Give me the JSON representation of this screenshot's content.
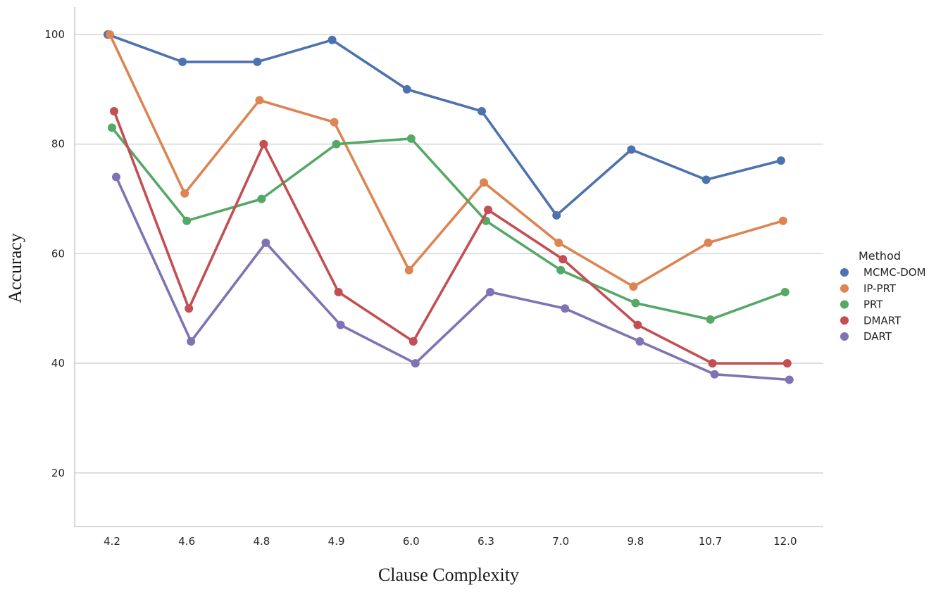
{
  "chart_data": {
    "type": "line",
    "xlabel": "Clause Complexity",
    "ylabel": "Accuracy",
    "categories": [
      "4.2",
      "4.6",
      "4.8",
      "4.9",
      "6.0",
      "6.3",
      "7.0",
      "9.8",
      "10.7",
      "12.0"
    ],
    "yticks": [
      "20",
      "40",
      "60",
      "80",
      "100"
    ],
    "ylim": [
      10,
      105
    ],
    "grid": "horizontal",
    "legend": {
      "title": "Method",
      "placement": "right"
    },
    "series": [
      {
        "name": "MCMC-DOM",
        "color": "#4c72b0",
        "values": [
          100,
          95,
          95,
          99,
          90,
          86,
          67,
          79,
          73.5,
          77
        ]
      },
      {
        "name": "IP-PRT",
        "color": "#dd8452",
        "values": [
          100,
          71,
          88,
          84,
          57,
          73,
          62,
          54,
          62,
          66
        ]
      },
      {
        "name": "PRT",
        "color": "#55a868",
        "values": [
          83,
          66,
          70,
          80,
          81,
          66,
          57,
          51,
          48,
          53
        ]
      },
      {
        "name": "DMART",
        "color": "#c44e52",
        "values": [
          86,
          50,
          80,
          53,
          44,
          68,
          59,
          47,
          40,
          40
        ]
      },
      {
        "name": "DART",
        "color": "#8172b3",
        "values": [
          74,
          44,
          62,
          47,
          40,
          53,
          50,
          44,
          38,
          37
        ]
      }
    ]
  }
}
